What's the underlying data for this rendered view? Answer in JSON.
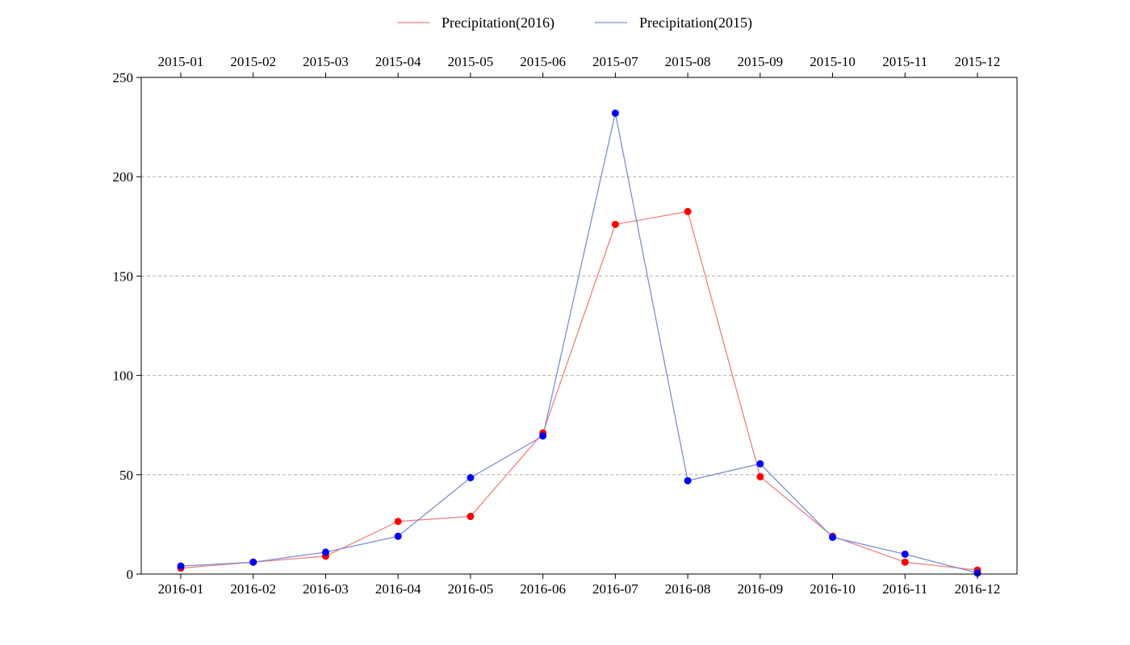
{
  "chart_data": {
    "type": "line",
    "title": "",
    "xlabel": "",
    "ylabel": "",
    "categories": [
      "2016-01",
      "2016-02",
      "2016-03",
      "2016-04",
      "2016-05",
      "2016-06",
      "2016-07",
      "2016-08",
      "2016-09",
      "2016-10",
      "2016-11",
      "2016-12"
    ],
    "categories_top": [
      "2015-01",
      "2015-02",
      "2015-03",
      "2015-04",
      "2015-05",
      "2015-06",
      "2015-07",
      "2015-08",
      "2015-09",
      "2015-10",
      "2015-11",
      "2015-12"
    ],
    "ylim": [
      0,
      250
    ],
    "yticks": [
      0,
      50,
      100,
      150,
      200,
      250
    ],
    "grid": "horizontal dashed",
    "legend_position": "top-center",
    "series": [
      {
        "name": "Precipitation(2016)",
        "line_color": "#f08080",
        "marker_color": "#ff0000",
        "values": [
          3,
          6,
          9,
          26.5,
          29,
          71,
          176,
          182.5,
          49,
          19,
          6,
          2
        ]
      },
      {
        "name": "Precipitation(2015)",
        "line_color": "#7b8fd4",
        "marker_color": "#0000ff",
        "values": [
          4,
          6,
          11,
          19,
          48.5,
          69.5,
          232,
          47,
          55.5,
          18.5,
          10,
          0.5
        ]
      }
    ]
  }
}
